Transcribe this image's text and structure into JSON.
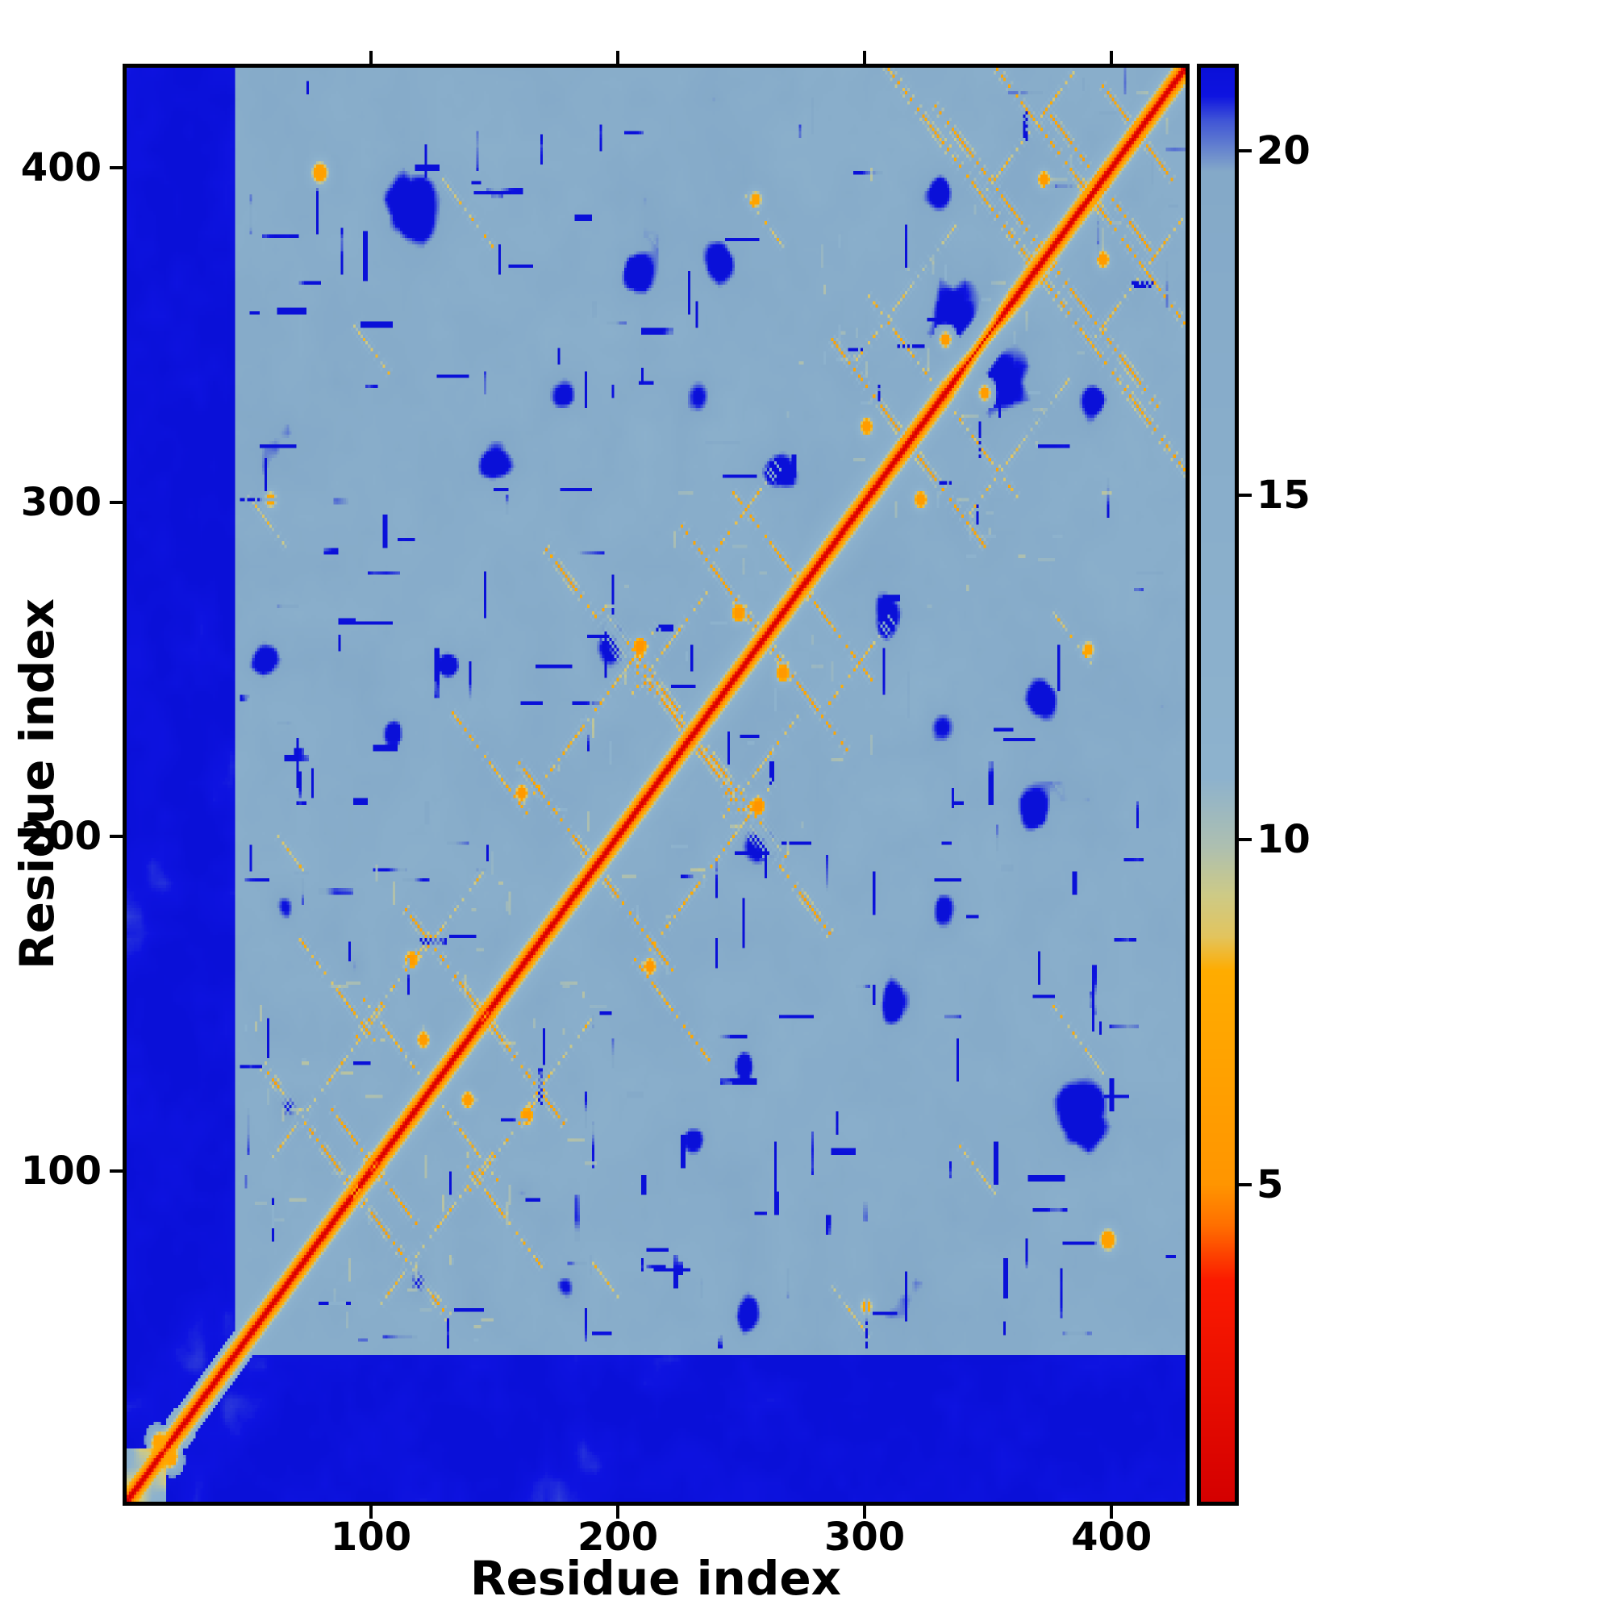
{
  "chart_data": {
    "type": "heatmap",
    "title": "",
    "xlabel": "Residue index",
    "ylabel": "Residue index",
    "x_range": [
      1,
      430
    ],
    "y_range": [
      1,
      430
    ],
    "x_ticks": [
      100,
      200,
      300,
      400
    ],
    "y_ticks": [
      100,
      200,
      300,
      400
    ],
    "grid": false,
    "colorbar": {
      "orientation": "vertical",
      "position": "right",
      "min": 0.4,
      "max": 21.2,
      "ticks": [
        5,
        10,
        15,
        20
      ]
    },
    "colormap_stops": [
      {
        "v": 0.4,
        "color": "#d40000"
      },
      {
        "v": 3.6,
        "color": "#fb1a00"
      },
      {
        "v": 4.4,
        "color": "#ff6f00"
      },
      {
        "v": 5.0,
        "color": "#ff9500"
      },
      {
        "v": 8.1,
        "color": "#ffac00"
      },
      {
        "v": 8.6,
        "color": "#e2c45e"
      },
      {
        "v": 9.2,
        "color": "#cdca86"
      },
      {
        "v": 9.9,
        "color": "#adbfb0"
      },
      {
        "v": 10.9,
        "color": "#8db2cd"
      },
      {
        "v": 19.7,
        "color": "#84a9c8"
      },
      {
        "v": 20.45,
        "color": "#3f54d6"
      },
      {
        "v": 20.8,
        "color": "#0e13e0"
      },
      {
        "v": 21.2,
        "color": "#0a10d8"
      }
    ],
    "synthetic": {
      "n": 430,
      "seed": 1337,
      "interior_base": 16.6,
      "diag_scale": 8.5,
      "tail_end": 44,
      "tail_value": 21.1,
      "noise": [
        {
          "cell": 14,
          "amp": 2.2
        },
        {
          "cell": 5,
          "amp": 1.1
        },
        {
          "cell": 46,
          "amp": 1.3
        }
      ],
      "anti_streaks": [
        [
          55,
          130,
          38,
          6.0,
          1.6
        ],
        [
          70,
          168,
          30,
          7.0,
          1.4
        ],
        [
          82,
          118,
          20,
          6.5,
          1.4
        ],
        [
          96,
          150,
          22,
          7.5,
          1.3
        ],
        [
          112,
          178,
          34,
          6.2,
          1.5
        ],
        [
          132,
          236,
          30,
          7.2,
          1.3
        ],
        [
          158,
          222,
          28,
          6.0,
          1.5
        ],
        [
          170,
          285,
          42,
          6.0,
          1.5
        ],
        [
          192,
          268,
          34,
          5.5,
          1.6
        ],
        [
          205,
          252,
          22,
          5.2,
          1.4
        ],
        [
          225,
          292,
          30,
          6.3,
          1.4
        ],
        [
          246,
          302,
          26,
          6.8,
          1.3
        ],
        [
          286,
          348,
          30,
          6.2,
          1.5
        ],
        [
          300,
          362,
          26,
          7.0,
          1.3
        ],
        [
          308,
          430,
          58,
          6.8,
          1.6
        ],
        [
          328,
          418,
          42,
          6.2,
          1.5
        ],
        [
          352,
          430,
          38,
          6.5,
          1.5
        ],
        [
          372,
          418,
          22,
          6.0,
          1.4
        ],
        [
          48,
          302,
          16,
          8.4,
          1.2
        ],
        [
          92,
          352,
          14,
          8.3,
          1.2
        ],
        [
          128,
          396,
          20,
          7.8,
          1.3
        ],
        [
          250,
          392,
          16,
          8.2,
          1.2
        ],
        [
          60,
          200,
          12,
          8.5,
          1.1
        ],
        [
          395,
          425,
          14,
          6.5,
          1.3
        ]
      ],
      "para_streaks": [
        [
          58,
          102,
          46,
          7.8,
          1.3
        ],
        [
          92,
          138,
          32,
          7.9,
          1.2
        ],
        [
          118,
          162,
          26,
          8.0,
          1.2
        ],
        [
          165,
          212,
          50,
          7.4,
          1.3
        ],
        [
          205,
          242,
          30,
          7.8,
          1.2
        ],
        [
          238,
          284,
          26,
          7.8,
          1.2
        ],
        [
          296,
          342,
          40,
          7.8,
          1.3
        ],
        [
          348,
          392,
          36,
          7.6,
          1.3
        ]
      ],
      "blue_blobs": [
        [
          115,
          386,
          12,
          7
        ],
        [
          150,
          312,
          9,
          6
        ],
        [
          55,
          252,
          7,
          6
        ],
        [
          64,
          178,
          6,
          5.5
        ],
        [
          130,
          250,
          6,
          5.5
        ],
        [
          178,
          332,
          8,
          6
        ],
        [
          232,
          330,
          7,
          5.5
        ],
        [
          196,
          258,
          8,
          6
        ],
        [
          108,
          230,
          5,
          5
        ],
        [
          205,
          368,
          7,
          5.5
        ],
        [
          240,
          372,
          7,
          6
        ],
        [
          335,
          358,
          13,
          7
        ],
        [
          330,
          392,
          8,
          6
        ],
        [
          265,
          308,
          6,
          5
        ],
        [
          65,
          118,
          5,
          5
        ],
        [
          92,
          160,
          5,
          5
        ]
      ],
      "warm_spots": [
        [
          12,
          18,
          3,
          7
        ],
        [
          78,
          398,
          4,
          6.5
        ],
        [
          115,
          162,
          3,
          6
        ],
        [
          120,
          138,
          3,
          6
        ],
        [
          160,
          212,
          3,
          5.5
        ],
        [
          208,
          256,
          3,
          5
        ],
        [
          248,
          266,
          3,
          5.5
        ],
        [
          300,
          322,
          3,
          6
        ],
        [
          332,
          348,
          3,
          6
        ],
        [
          372,
          396,
          3,
          6
        ],
        [
          255,
          390,
          3,
          7
        ],
        [
          58,
          300,
          3,
          7.5
        ]
      ],
      "dashes": {
        "count": 120,
        "amp": 6.0,
        "min_len": 4,
        "max_len": 16
      },
      "warm_dashes": {
        "count": 100,
        "min_len": 2,
        "max_len": 8,
        "target_min": 8.4,
        "target_max": 10.0
      }
    }
  }
}
